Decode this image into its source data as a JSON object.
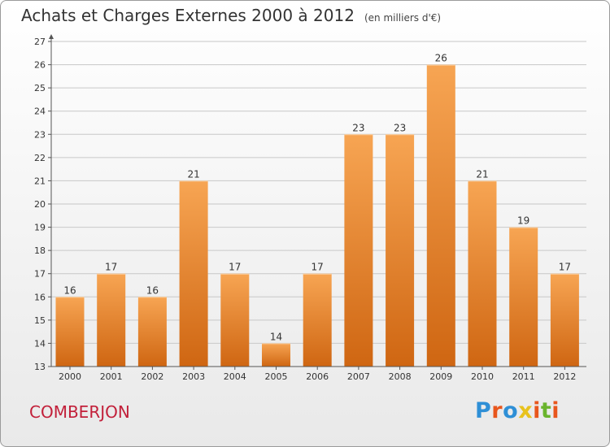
{
  "header": {
    "title": "Achats et Charges Externes 2000 à 2012",
    "unit": "(en milliers d'€)"
  },
  "footer": {
    "commune": "COMBERJON",
    "logo_text": "Proxiti",
    "logo_colors": [
      "#2e8fd6",
      "#e8561d",
      "#2e8fd6",
      "#e8c21d",
      "#e8561d",
      "#6ab42d",
      "#e8561d"
    ]
  },
  "colors": {
    "bar_light": "#f7a553",
    "bar_dark": "#cf6612",
    "grid": "#c8c8c8",
    "axis": "#555555",
    "commune": "#c2203a"
  },
  "chart_data": {
    "type": "bar",
    "title": "Achats et Charges Externes 2000 à 2012",
    "subtitle": "(en milliers d'€)",
    "categories": [
      "2000",
      "2001",
      "2002",
      "2003",
      "2004",
      "2005",
      "2006",
      "2007",
      "2008",
      "2009",
      "2010",
      "2011",
      "2012"
    ],
    "values": [
      16,
      17,
      16,
      21,
      17,
      14,
      17,
      23,
      23,
      26,
      21,
      19,
      17
    ],
    "xlabel": "",
    "ylabel": "",
    "ylim": [
      13,
      27
    ],
    "yticks": [
      13,
      14,
      15,
      16,
      17,
      18,
      19,
      20,
      21,
      22,
      23,
      24,
      25,
      26,
      27
    ],
    "grid": true,
    "data_labels": true
  }
}
